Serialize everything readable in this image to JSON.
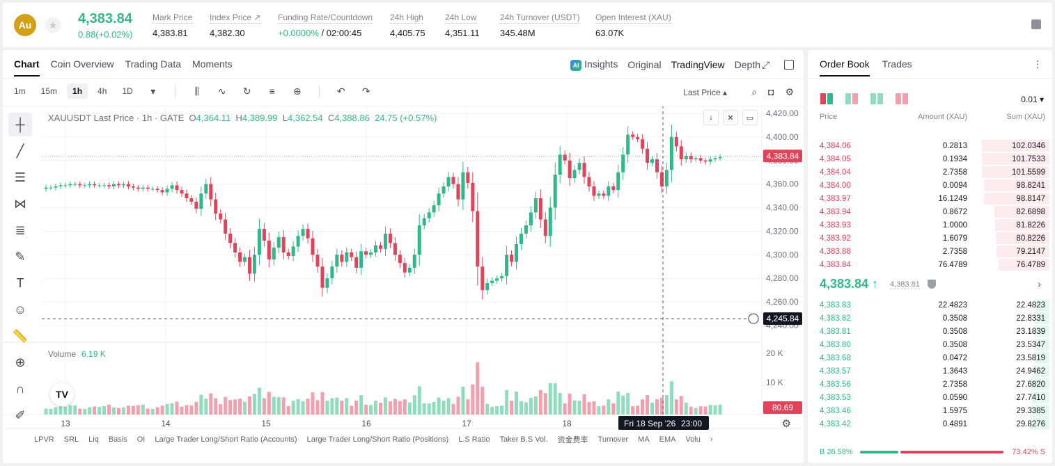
{
  "ticker": {
    "coin_logo_text": "Au",
    "price": "4,383.84",
    "change": "0.88(+0.02%)",
    "stats": [
      {
        "label": "Mark Price",
        "value": "4,383.81"
      },
      {
        "label": "Index Price ↗",
        "value": "4,382.30"
      },
      {
        "label": "Funding Rate/Countdown",
        "value_green": "+0.0000%",
        "value": " / 02:00:45"
      },
      {
        "label": "24h High",
        "value": "4,405.75"
      },
      {
        "label": "24h Low",
        "value": "4,351.11"
      },
      {
        "label": "24h Turnover (USDT)",
        "value": "345.48M"
      },
      {
        "label": "Open Interest (XAU)",
        "value": "63.07K"
      }
    ]
  },
  "chart_tabs": [
    "Chart",
    "Coin Overview",
    "Trading Data",
    "Moments"
  ],
  "view_tabs": {
    "insights": "Insights",
    "original": "Original",
    "tradingview": "TradingView",
    "depth": "Depth",
    "ai_badge": "AI"
  },
  "timeframes": [
    "1m",
    "15m",
    "1h",
    "4h",
    "1D"
  ],
  "last_price_label": "Last Price",
  "legend": {
    "symbol": "XAUUSDT Last Price · 1h · GATE",
    "o_label": "O",
    "o": "4,364.11",
    "h_label": "H",
    "h": "4,389.99",
    "l_label": "L",
    "l": "4,362.54",
    "c_label": "C",
    "c": "4,388.86",
    "chg": "24.75 (+0.57%)"
  },
  "volume_legend": {
    "label": "Volume",
    "value": "6.19 K"
  },
  "indicators": [
    "LPVR",
    "SRL",
    "Liq",
    "Basis",
    "OI",
    "Large Trader Long/Short Ratio (Accounts)",
    "Large Trader Long/Short Ratio (Positions)",
    "L.S Ratio",
    "Taker B.S Vol.",
    "资金费率",
    "Turnover",
    "MA",
    "EMA",
    "Volu"
  ],
  "chart_labels": {
    "last_price_tag": "4,383.84",
    "crosshair_tag": "4,245.84",
    "volume_tag": "80.69",
    "crosshair_date": "Fri 18 Sep '26",
    "crosshair_time": "23:00"
  },
  "colors": {
    "up": "#2fb98a",
    "down": "#e0435a",
    "up_vol": "#8fdcbe",
    "down_vol": "#f2a0ad"
  },
  "chart_data": {
    "type": "candlestick",
    "series_name": "XAUUSDT Last Price",
    "interval": "1h",
    "y_ticks": [
      "4,420.00",
      "4,400.00",
      "4,380.00",
      "4,360.00",
      "4,340.00",
      "4,320.00",
      "4,300.00",
      "4,280.00",
      "4,260.00",
      "4,240.00"
    ],
    "ylim": [
      4240,
      4420
    ],
    "x_ticks": [
      "13",
      "14",
      "15",
      "16",
      "17",
      "18"
    ],
    "volume_ticks": [
      "20 K",
      "10 K"
    ],
    "volume_ylim": [
      0,
      25000
    ],
    "closes": [
      4357,
      4357,
      4358,
      4359,
      4359,
      4360,
      4360,
      4359,
      4359,
      4360,
      4359,
      4359,
      4359,
      4358,
      4360,
      4359,
      4360,
      4358,
      4357,
      4356,
      4357,
      4356,
      4356,
      4355,
      4353,
      4356,
      4359,
      4355,
      4352,
      4348,
      4345,
      4339,
      4352,
      4360,
      4347,
      4335,
      4330,
      4318,
      4310,
      4302,
      4294,
      4298,
      4284,
      4300,
      4322,
      4312,
      4296,
      4306,
      4315,
      4302,
      4299,
      4307,
      4316,
      4322,
      4314,
      4300,
      4290,
      4272,
      4280,
      4290,
      4300,
      4294,
      4302,
      4298,
      4289,
      4303,
      4300,
      4302,
      4308,
      4305,
      4318,
      4310,
      4300,
      4293,
      4285,
      4289,
      4300,
      4325,
      4331,
      4336,
      4342,
      4352,
      4358,
      4366,
      4360,
      4347,
      4370,
      4361,
      4337,
      4290,
      4270,
      4276,
      4278,
      4280,
      4282,
      4300,
      4294,
      4309,
      4318,
      4325,
      4336,
      4348,
      4330,
      4316,
      4340,
      4368,
      4385,
      4380,
      4365,
      4372,
      4378,
      4366,
      4358,
      4350,
      4352,
      4350,
      4358,
      4355,
      4370,
      4385,
      4402,
      4400,
      4398,
      4390,
      4378,
      4381,
      4370,
      4358,
      4372,
      4400,
      4392,
      4381,
      4384,
      4381,
      4382,
      4380,
      4379,
      4381,
      4382,
      4383
    ]
  },
  "orderbook": {
    "tabs": [
      "Order Book",
      "Trades"
    ],
    "precision": "0.01 ▾",
    "headers": {
      "price": "Price",
      "amount": "Amount (XAU)",
      "sum": "Sum (XAU)"
    },
    "asks": [
      {
        "price": "4,384.06",
        "amount": "0.2813",
        "sum": "102.0346"
      },
      {
        "price": "4,384.05",
        "amount": "0.1934",
        "sum": "101.7533"
      },
      {
        "price": "4,384.04",
        "amount": "2.7358",
        "sum": "101.5599"
      },
      {
        "price": "4,384.00",
        "amount": "0.0094",
        "sum": "98.8241"
      },
      {
        "price": "4,383.97",
        "amount": "16.1249",
        "sum": "98.8147"
      },
      {
        "price": "4,383.94",
        "amount": "0.8672",
        "sum": "82.6898"
      },
      {
        "price": "4,383.93",
        "amount": "1.0000",
        "sum": "81.8226"
      },
      {
        "price": "4,383.92",
        "amount": "1.6079",
        "sum": "80.8226"
      },
      {
        "price": "4,383.88",
        "amount": "2.7358",
        "sum": "79.2147"
      },
      {
        "price": "4,383.84",
        "amount": "76.4789",
        "sum": "76.4789"
      }
    ],
    "mid": {
      "price": "4,383.84 ↑",
      "mark": "4,383.81"
    },
    "bids": [
      {
        "price": "4,383.83",
        "amount": "22.4823",
        "sum": "22.4823"
      },
      {
        "price": "4,383.82",
        "amount": "0.3508",
        "sum": "22.8331"
      },
      {
        "price": "4,383.81",
        "amount": "0.3508",
        "sum": "23.1839"
      },
      {
        "price": "4,383.80",
        "amount": "0.3508",
        "sum": "23.5347"
      },
      {
        "price": "4,383.68",
        "amount": "0.0472",
        "sum": "23.5819"
      },
      {
        "price": "4,383.57",
        "amount": "1.3643",
        "sum": "24.9462"
      },
      {
        "price": "4,383.56",
        "amount": "2.7358",
        "sum": "27.6820"
      },
      {
        "price": "4,383.53",
        "amount": "0.0590",
        "sum": "27.7410"
      },
      {
        "price": "4,383.46",
        "amount": "1.5975",
        "sum": "29.3385"
      },
      {
        "price": "4,383.42",
        "amount": "0.4891",
        "sum": "29.8276"
      }
    ],
    "buy_ratio": "B 26.58%",
    "sell_ratio": "73.42% S",
    "buy_fraction": 0.2658
  }
}
